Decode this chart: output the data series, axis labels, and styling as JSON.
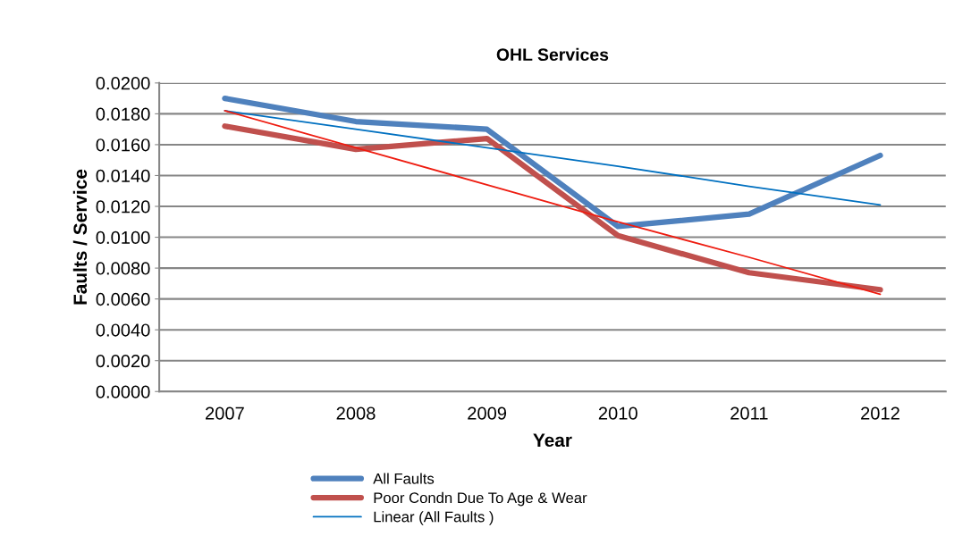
{
  "chart_data": {
    "type": "line",
    "title": "OHL Services",
    "xlabel": "Year",
    "ylabel": "Faults / Service",
    "categories": [
      "2007",
      "2008",
      "2009",
      "2010",
      "2011",
      "2012"
    ],
    "series": [
      {
        "name": "All Faults",
        "color": "#4f81bd",
        "values": [
          0.019,
          0.0175,
          0.017,
          0.0107,
          0.0115,
          0.0153
        ]
      },
      {
        "name": "Poor Condn Due To Age & Wear",
        "color": "#c0504d",
        "values": [
          0.0172,
          0.0157,
          0.0164,
          0.0101,
          0.0077,
          0.0066
        ]
      },
      {
        "name": "Linear (All Faults )",
        "color": "#0070c0",
        "values": [
          0.0182,
          0.017,
          0.0158,
          0.0146,
          0.0133,
          0.0121
        ]
      },
      {
        "color": "#ee1c10",
        "values": [
          0.0182,
          0.0158,
          0.0134,
          0.011,
          0.0087,
          0.0063
        ]
      }
    ],
    "ylim": [
      0,
      0.02
    ],
    "yticks": [
      {
        "value": 0,
        "label": "0.0000"
      },
      {
        "value": 0.002,
        "label": "0.0020"
      },
      {
        "value": 0.004,
        "label": "0.0040"
      },
      {
        "value": 0.006,
        "label": "0.0060"
      },
      {
        "value": 0.008,
        "label": "0.0080"
      },
      {
        "value": 0.01,
        "label": "0.0100"
      },
      {
        "value": 0.012,
        "label": "0.0120"
      },
      {
        "value": 0.014,
        "label": "0.0140"
      },
      {
        "value": 0.016,
        "label": "0.0160"
      },
      {
        "value": 0.018,
        "label": "0.0180"
      },
      {
        "value": 0.02,
        "label": "0.0200"
      }
    ],
    "grid": "y",
    "legend": "bottom",
    "marker": "none",
    "line_style": "solid"
  }
}
